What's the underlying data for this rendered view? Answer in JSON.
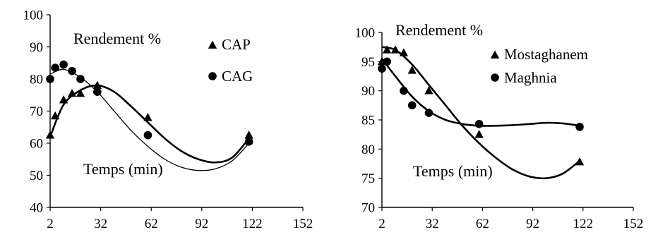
{
  "colors": {
    "curve": "#000000",
    "marker": "#000000",
    "axis": "#000000",
    "background": "#ffffff"
  },
  "chart_data": [
    {
      "type": "scatter",
      "annotations": {
        "title_note": "Rendement %",
        "x_note": "Temps (min)"
      },
      "xlim": [
        2,
        152
      ],
      "ylim": [
        40,
        100
      ],
      "x_ticks": [
        2,
        32,
        62,
        92,
        122,
        152
      ],
      "y_ticks": [
        40,
        50,
        60,
        70,
        80,
        90,
        100
      ],
      "grid": false,
      "legend_position": "top-right",
      "series": [
        {
          "name": "CAP",
          "marker": "triangle",
          "points": [
            [
              2,
              62.5
            ],
            [
              5,
              68.5
            ],
            [
              10,
              73.5
            ],
            [
              15,
              75.5
            ],
            [
              20,
              75.5
            ],
            [
              30,
              78
            ],
            [
              60,
              68
            ],
            [
              120,
              62.5
            ]
          ],
          "fit_curve": [
            [
              2,
              62
            ],
            [
              10,
              72
            ],
            [
              20,
              76.5
            ],
            [
              30,
              78
            ],
            [
              40,
              76
            ],
            [
              50,
              71.5
            ],
            [
              60,
              66.5
            ],
            [
              70,
              61.5
            ],
            [
              80,
              57.5
            ],
            [
              90,
              55
            ],
            [
              100,
              54
            ],
            [
              110,
              55.5
            ],
            [
              120,
              61.5
            ]
          ]
        },
        {
          "name": "CAG",
          "marker": "circle",
          "points": [
            [
              2,
              80
            ],
            [
              5,
              83.5
            ],
            [
              10,
              84.5
            ],
            [
              15,
              82.5
            ],
            [
              20,
              80
            ],
            [
              30,
              76
            ],
            [
              60,
              62.5
            ],
            [
              120,
              60.5
            ]
          ],
          "fit_curve": [
            [
              2,
              81.5
            ],
            [
              10,
              83
            ],
            [
              20,
              80.5
            ],
            [
              30,
              76
            ],
            [
              40,
              70
            ],
            [
              50,
              64
            ],
            [
              60,
              59
            ],
            [
              70,
              55
            ],
            [
              80,
              52.5
            ],
            [
              90,
              51.5
            ],
            [
              100,
              52
            ],
            [
              110,
              54.5
            ],
            [
              120,
              60
            ]
          ]
        }
      ]
    },
    {
      "type": "scatter",
      "annotations": {
        "title_note": "Rendement %",
        "x_note": "Temps (min)"
      },
      "xlim": [
        2,
        152
      ],
      "ylim": [
        70,
        100
      ],
      "x_ticks": [
        2,
        32,
        62,
        92,
        122,
        152
      ],
      "y_ticks": [
        70,
        75,
        80,
        85,
        90,
        95,
        100
      ],
      "grid": false,
      "legend_position": "top-right",
      "series": [
        {
          "name": "Mostaghanem",
          "marker": "triangle",
          "points": [
            [
              2,
              95
            ],
            [
              5,
              97
            ],
            [
              10,
              97
            ],
            [
              15,
              96.5
            ],
            [
              20,
              93.5
            ],
            [
              30,
              90
            ],
            [
              60,
              82.5
            ],
            [
              120,
              77.8
            ]
          ],
          "fit_curve": [
            [
              2,
              97.5
            ],
            [
              10,
              97
            ],
            [
              20,
              94.5
            ],
            [
              30,
              91
            ],
            [
              40,
              87.5
            ],
            [
              50,
              84
            ],
            [
              60,
              81
            ],
            [
              70,
              78.5
            ],
            [
              80,
              76.5
            ],
            [
              90,
              75.3
            ],
            [
              100,
              75
            ],
            [
              110,
              75.8
            ],
            [
              120,
              78
            ]
          ]
        },
        {
          "name": "Maghnia",
          "marker": "circle",
          "points": [
            [
              2,
              93.8
            ],
            [
              5,
              95
            ],
            [
              15,
              90
            ],
            [
              20,
              87.5
            ],
            [
              30,
              86.2
            ],
            [
              60,
              84.3
            ],
            [
              120,
              83.8
            ]
          ],
          "fit_curve": [
            [
              2,
              95.5
            ],
            [
              10,
              92.5
            ],
            [
              20,
              89
            ],
            [
              30,
              86.5
            ],
            [
              40,
              85
            ],
            [
              50,
              84.3
            ],
            [
              60,
              84
            ],
            [
              70,
              84
            ],
            [
              80,
              84.1
            ],
            [
              90,
              84.3
            ],
            [
              100,
              84.5
            ],
            [
              110,
              84.4
            ],
            [
              120,
              84
            ]
          ]
        }
      ]
    }
  ]
}
